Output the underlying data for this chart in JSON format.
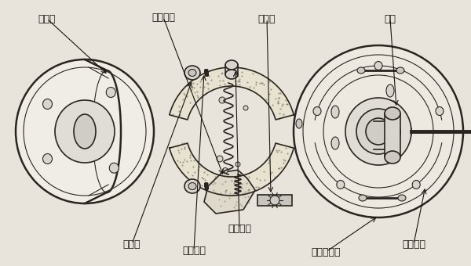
{
  "background_color": "#e8e4dc",
  "fig_width": 6.0,
  "fig_height": 3.4,
  "dpi": 100,
  "labels": {
    "drum": "剎車鼓",
    "spring_seat": "彈簧座",
    "positioning_spring": "定位彈簧",
    "brake_shoe": "剎車蹄片",
    "shoe_slot": "蹄片定位槽",
    "brake_plate": "剎車底板",
    "return_spring": "回拉彈簧",
    "adjuster": "調整器",
    "cylinder": "分缸"
  },
  "line_color": "#2a2520",
  "text_color": "#1a1510"
}
